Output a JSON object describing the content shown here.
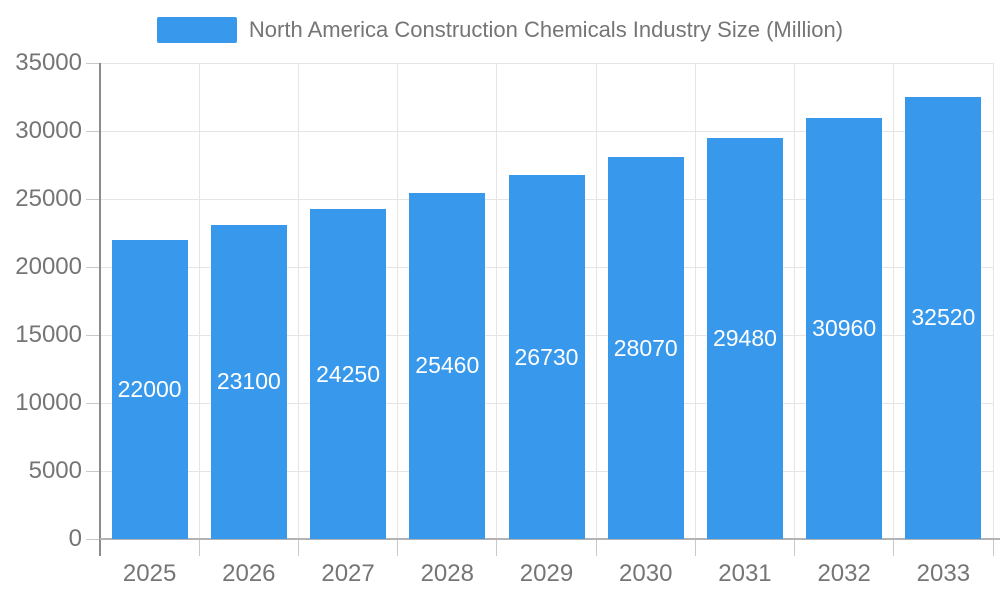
{
  "legend": {
    "label": "North America Construction Chemicals Industry Size (Million)"
  },
  "chart_data": {
    "type": "bar",
    "title": "North America Construction Chemicals Industry Size (Million)",
    "series_name": "North America Construction Chemicals Industry Size (Million)",
    "categories": [
      "2025",
      "2026",
      "2027",
      "2028",
      "2029",
      "2030",
      "2031",
      "2032",
      "2033"
    ],
    "values": [
      22000,
      23100,
      24250,
      25460,
      26730,
      28070,
      29480,
      30960,
      32520
    ],
    "value_labels": [
      "22000",
      "23100",
      "24250",
      "25460",
      "26730",
      "28070",
      "29480",
      "30960",
      "32520"
    ],
    "xlabel": "",
    "ylabel": "",
    "ylim": [
      0,
      35000
    ],
    "yticks": [
      0,
      5000,
      10000,
      15000,
      20000,
      25000,
      30000,
      35000
    ],
    "grid": true,
    "legend_position": "top",
    "bar_color": "#3899EC",
    "value_label_color": "#FFFFFF",
    "axis_text_color": "#757575"
  }
}
